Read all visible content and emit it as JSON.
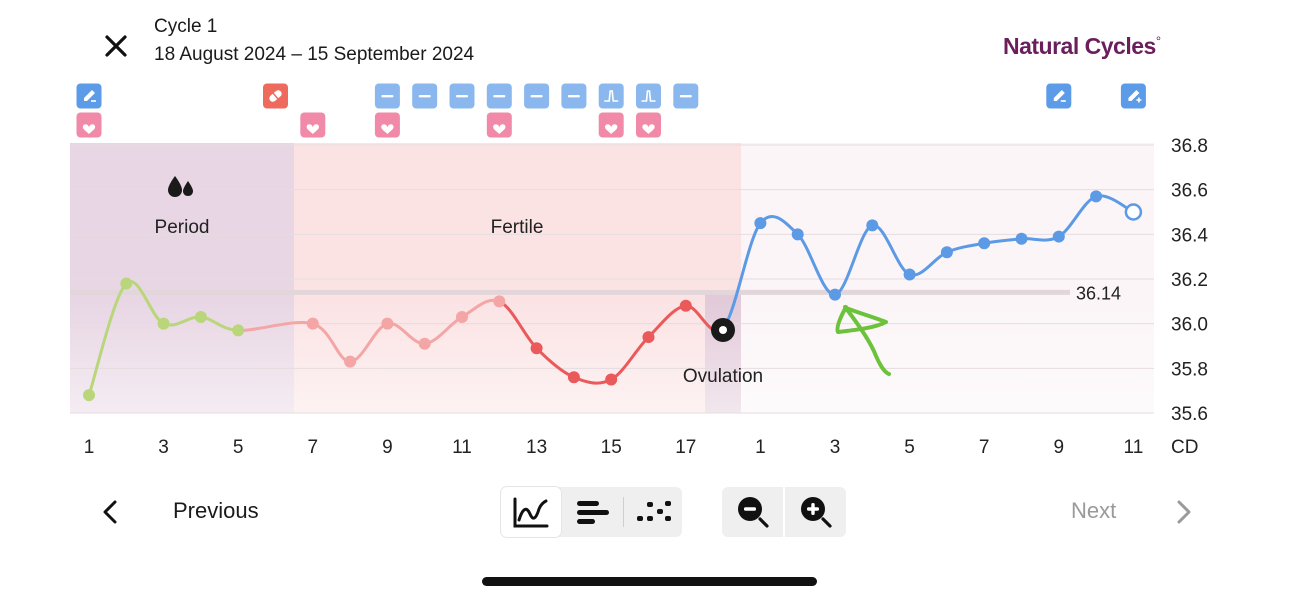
{
  "header": {
    "cycle_title": "Cycle 1",
    "cycle_dates": "18 August 2024 – 15 September 2024",
    "brand_name": "Natural Cycles",
    "brand_mark": "°",
    "close_icon": "close-icon"
  },
  "phases": {
    "period_label": "Period",
    "fertile_label": "Fertile",
    "ovulation_label": "Ovulation",
    "period_icon": "drops-icon"
  },
  "reference": {
    "coverline_value": "36.14"
  },
  "markers": {
    "top_row": [
      {
        "day_index": 0,
        "icon": "edit-note-icon",
        "color": "#5b9be8"
      },
      {
        "day_index": 5,
        "icon": "pill-icon",
        "color": "#ee6a5c"
      },
      {
        "day_index": 8,
        "icon": "test-negative-icon",
        "color": "#8ab8ee"
      },
      {
        "day_index": 9,
        "icon": "test-negative-icon",
        "color": "#8ab8ee"
      },
      {
        "day_index": 10,
        "icon": "test-negative-icon",
        "color": "#8ab8ee"
      },
      {
        "day_index": 11,
        "icon": "test-negative-icon",
        "color": "#8ab8ee"
      },
      {
        "day_index": 12,
        "icon": "test-negative-icon",
        "color": "#8ab8ee"
      },
      {
        "day_index": 13,
        "icon": "test-negative-icon",
        "color": "#8ab8ee"
      },
      {
        "day_index": 14,
        "icon": "lh-test-icon",
        "color": "#8ab8ee"
      },
      {
        "day_index": 15,
        "icon": "lh-test-icon",
        "color": "#8ab8ee"
      },
      {
        "day_index": 16,
        "icon": "test-negative-icon",
        "color": "#8ab8ee"
      },
      {
        "day_index": 26,
        "icon": "edit-note-icon",
        "color": "#5b9be8"
      },
      {
        "day_index": 28,
        "icon": "add-note-icon",
        "color": "#5b9be8"
      }
    ],
    "bottom_row": [
      {
        "day_index": 0,
        "icon": "heart-icon",
        "color": "#f08aa8"
      },
      {
        "day_index": 6,
        "icon": "heart-icon",
        "color": "#f08aa8"
      },
      {
        "day_index": 8,
        "icon": "heart-icon",
        "color": "#f08aa8"
      },
      {
        "day_index": 11,
        "icon": "heart-icon",
        "color": "#f08aa8"
      },
      {
        "day_index": 14,
        "icon": "heart-icon",
        "color": "#f08aa8"
      },
      {
        "day_index": 15,
        "icon": "heart-icon",
        "color": "#f08aa8"
      }
    ]
  },
  "chart_data": {
    "type": "line",
    "x_ticks": [
      "1",
      "3",
      "5",
      "7",
      "9",
      "11",
      "13",
      "15",
      "17",
      "1",
      "3",
      "5",
      "7",
      "9",
      "11"
    ],
    "x_unit_label": "CD",
    "y_ticks": [
      "36.8",
      "36.6",
      "36.4",
      "36.2",
      "36.0",
      "35.8",
      "35.6"
    ],
    "ylim": [
      35.6,
      36.8
    ],
    "coverline": 36.14,
    "ovulation_day_index": 17,
    "series": [
      {
        "phase": "period",
        "color": "#b9d67a",
        "days": [
          0,
          1,
          2,
          3,
          4
        ],
        "values": [
          35.68,
          36.18,
          36.0,
          36.03,
          35.97
        ]
      },
      {
        "phase": "fertile",
        "color": "#f4a5a5",
        "days": [
          6,
          7,
          8,
          9,
          10,
          11
        ],
        "values": [
          36.0,
          35.83,
          36.0,
          35.91,
          36.03,
          36.1
        ]
      },
      {
        "phase": "fertile-late",
        "color": "#ea5a5a",
        "days": [
          12,
          13,
          14,
          15,
          16,
          17
        ],
        "values": [
          35.89,
          35.76,
          35.75,
          35.94,
          36.08,
          35.98
        ]
      },
      {
        "phase": "luteal",
        "color": "#5c9ae6",
        "days": [
          18,
          19,
          20,
          21,
          22,
          23,
          24,
          25,
          26,
          27,
          28
        ],
        "values": [
          36.45,
          36.4,
          36.13,
          36.44,
          36.22,
          36.32,
          36.36,
          36.38,
          36.39,
          36.57,
          36.5
        ]
      }
    ],
    "last_point_predicted": true
  },
  "footer": {
    "previous_label": "Previous",
    "next_label": "Next"
  },
  "colors": {
    "period_band": "#e8d6e4",
    "fertile_band": "#fbe3e4",
    "luteal_band": "#fbf5f7",
    "brand": "#6a1f5c",
    "annotation_green": "#6cc23a"
  }
}
